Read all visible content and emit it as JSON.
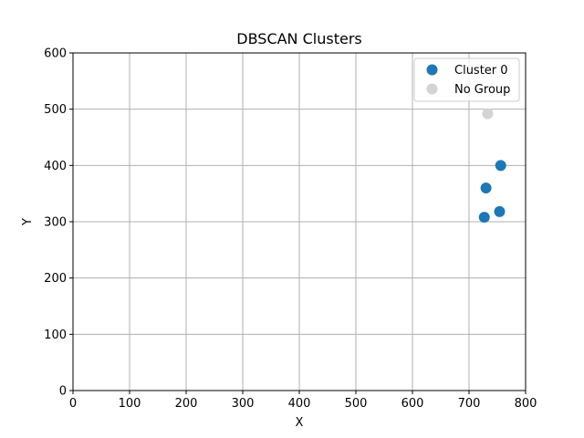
{
  "chart_data": {
    "type": "scatter",
    "title": "DBSCAN Clusters",
    "xlabel": "X",
    "ylabel": "Y",
    "xlim": [
      0,
      800
    ],
    "ylim": [
      0,
      600
    ],
    "xticks": [
      0,
      100,
      200,
      300,
      400,
      500,
      600,
      700,
      800
    ],
    "yticks": [
      0,
      100,
      200,
      300,
      400,
      500,
      600
    ],
    "xtick_labels": [
      "0",
      "100",
      "200",
      "300",
      "400",
      "500",
      "600",
      "700",
      "800"
    ],
    "ytick_labels": [
      "0",
      "100",
      "200",
      "300",
      "400",
      "500",
      "600"
    ],
    "grid": true,
    "legend_position": "top-right",
    "series": [
      {
        "name": "Cluster 0",
        "color": "#1f77b4",
        "points": [
          {
            "x": 756,
            "y": 400
          },
          {
            "x": 730,
            "y": 360
          },
          {
            "x": 754,
            "y": 318
          },
          {
            "x": 727,
            "y": 308
          }
        ]
      },
      {
        "name": "No Group",
        "color": "#d3d3d3",
        "points": [
          {
            "x": 733,
            "y": 492
          }
        ]
      }
    ]
  }
}
